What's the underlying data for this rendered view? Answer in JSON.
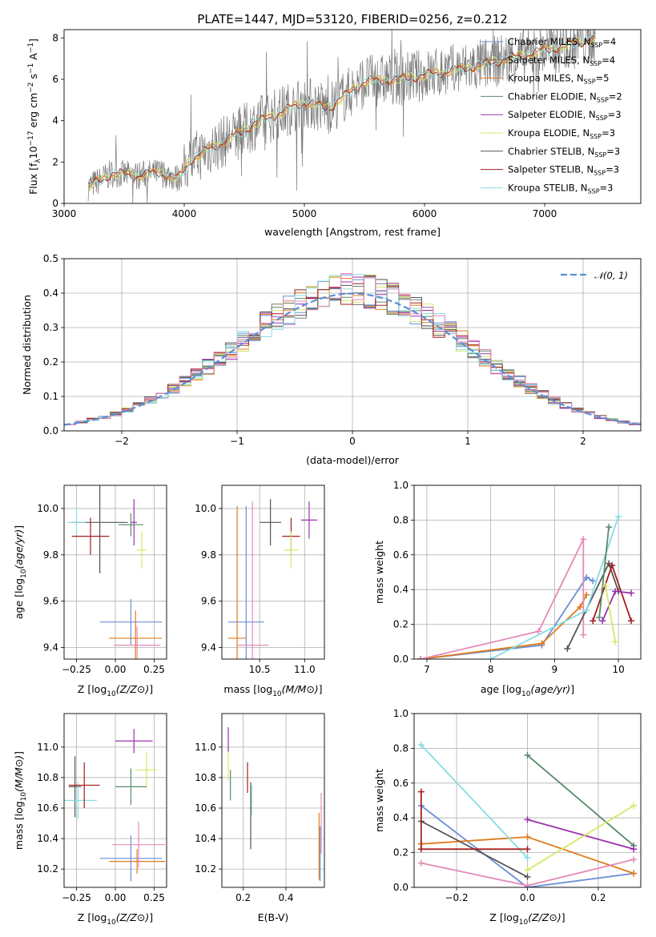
{
  "title": "PLATE=1447, MJD=53120, FIBERID=0256, z=0.212",
  "model_colors": {
    "Chabrier MILES": "#6b8fd6",
    "Salpeter MILES": "#7a7a7a",
    "Kroupa MILES": "#e07b1c",
    "Chabrier ELODIE": "#5a8a6a",
    "Salpeter ELODIE": "#9b30b0",
    "Kroupa ELODIE": "#d6e86a",
    "Chabrier STELIB": "#555555",
    "Salpeter STELIB": "#a51f1f",
    "Kroupa STELIB": "#86dde0",
    "extra_pink": "#e48ab8",
    "gaussian": "#5b8ed6"
  },
  "chart_data": [
    {
      "id": "spectrum",
      "type": "line",
      "xlabel": "wavelength [Angstrom, rest frame]",
      "ylabel_parts": [
        "Flux [f",
        "λ",
        "10",
        "−17",
        " erg cm",
        "−2",
        " s",
        "−1",
        " A",
        "−1",
        "]"
      ],
      "xlim": [
        3000,
        7800
      ],
      "ylim": [
        0,
        8.4
      ],
      "xticks": [
        "3000",
        "4000",
        "5000",
        "6000",
        "7000"
      ],
      "yticks": [
        "0",
        "2",
        "4",
        "6",
        "8"
      ],
      "legend_position": "right",
      "legend": [
        {
          "base": "Chabrier MILES, N",
          "sub": "SSP",
          "tail": "=4"
        },
        {
          "base": "Salpeter MILES, N",
          "sub": "SSP",
          "tail": "=4"
        },
        {
          "base": "Kroupa MILES, N",
          "sub": "SSP",
          "tail": "=5"
        },
        {
          "base": "Chabrier ELODIE, N",
          "sub": "SSP",
          "tail": "=2"
        },
        {
          "base": "Salpeter ELODIE, N",
          "sub": "SSP",
          "tail": "=3"
        },
        {
          "base": "Kroupa ELODIE, N",
          "sub": "SSP",
          "tail": "=3"
        },
        {
          "base": "Chabrier STELIB, N",
          "sub": "SSP",
          "tail": "=3"
        },
        {
          "base": "Salpeter STELIB, N",
          "sub": "SSP",
          "tail": "=3"
        },
        {
          "base": "Kroupa STELIB, N",
          "sub": "SSP",
          "tail": "=3"
        }
      ],
      "continuum": {
        "x": [
          3200,
          3400,
          3600,
          3800,
          3950,
          4050,
          4200,
          4400,
          4600,
          4800,
          5000,
          5200,
          5500,
          5800,
          6100,
          6400,
          6700,
          7000,
          7300,
          7500
        ],
        "y": [
          0.8,
          1.45,
          1.35,
          1.5,
          1.2,
          2.1,
          2.6,
          3.2,
          3.9,
          4.4,
          4.9,
          4.6,
          5.9,
          6.0,
          6.3,
          6.6,
          7.0,
          7.4,
          7.8,
          8.1
        ]
      }
    },
    {
      "id": "residuals",
      "type": "histogram",
      "xlabel": "(data-model)/error",
      "ylabel": "Normed distribution",
      "xlim": [
        -2.5,
        2.5
      ],
      "ylim": [
        0,
        0.5
      ],
      "xticks": [
        "−2",
        "−1",
        "0",
        "1",
        "2"
      ],
      "yticks": [
        "0.0",
        "0.1",
        "0.2",
        "0.3",
        "0.4",
        "0.5"
      ],
      "legend": "𝒩(0, 1)",
      "legend_position": "top-right",
      "bin_width": 0.1
    },
    {
      "id": "age_vs_Z",
      "type": "scatter",
      "xlabel": "Z [log10(Z/Z⊙)]",
      "ylabel": "age [log10(age/yr)]",
      "xlim": [
        -0.33,
        0.33
      ],
      "ylim": [
        9.35,
        10.1
      ],
      "xticks": [
        "−0.25",
        "0.00",
        "0.25"
      ],
      "yticks": [
        "9.4",
        "9.6",
        "9.8",
        "10.0"
      ],
      "points": [
        {
          "model": "Chabrier MILES",
          "x": 0.1,
          "y": 9.51,
          "xerr": 0.2,
          "yerr": 0.1
        },
        {
          "model": "Kroupa MILES",
          "x": 0.13,
          "y": 9.44,
          "xerr": 0.17,
          "yerr": 0.12
        },
        {
          "model": "extra_pink",
          "x": 0.14,
          "y": 9.41,
          "xerr": 0.15,
          "yerr": 0.08
        },
        {
          "model": "Chabrier STELIB",
          "x": -0.1,
          "y": 9.94,
          "xerr": 0.18,
          "yerr": 0.22
        },
        {
          "model": "Kroupa STELIB",
          "x": -0.25,
          "y": 9.94,
          "xerr": 0.06,
          "yerr": 0.06
        },
        {
          "model": "Salpeter STELIB",
          "x": -0.16,
          "y": 9.88,
          "xerr": 0.12,
          "yerr": 0.08
        },
        {
          "model": "Salpeter ELODIE",
          "x": 0.12,
          "y": 9.94,
          "xerr": 0.02,
          "yerr": 0.1
        },
        {
          "model": "Kroupa ELODIE",
          "x": 0.17,
          "y": 9.82,
          "xerr": 0.03,
          "yerr": 0.08
        },
        {
          "model": "Chabrier ELODIE",
          "x": 0.1,
          "y": 9.93,
          "xerr": 0.08,
          "yerr": 0.05
        }
      ]
    },
    {
      "id": "age_vs_mass",
      "type": "scatter",
      "xlabel": "mass [log10(M/M⊙)]",
      "xlim": [
        10.08,
        11.22
      ],
      "ylim": [
        9.35,
        10.1
      ],
      "xticks": [
        "10.5",
        "11.0"
      ],
      "yticks": [
        "9.4",
        "9.6",
        "9.8",
        "10.0"
      ],
      "points": [
        {
          "model": "Chabrier MILES",
          "x": 10.35,
          "y": 9.51,
          "xerr": 0.2,
          "yerr": 0.5
        },
        {
          "model": "Kroupa MILES",
          "x": 10.25,
          "y": 9.44,
          "xerr": 0.1,
          "yerr": 0.57
        },
        {
          "model": "extra_pink",
          "x": 10.42,
          "y": 9.41,
          "xerr": 0.18,
          "yerr": 0.62
        },
        {
          "model": "Chabrier STELIB",
          "x": 10.62,
          "y": 9.94,
          "xerr": 0.12,
          "yerr": 0.1
        },
        {
          "model": "Salpeter STELIB",
          "x": 10.85,
          "y": 9.88,
          "xerr": 0.1,
          "yerr": 0.08
        },
        {
          "model": "Salpeter ELODIE",
          "x": 11.05,
          "y": 9.95,
          "xerr": 0.09,
          "yerr": 0.08
        },
        {
          "model": "Kroupa ELODIE",
          "x": 10.85,
          "y": 9.82,
          "xerr": 0.08,
          "yerr": 0.08
        }
      ]
    },
    {
      "id": "weight_vs_age",
      "type": "line",
      "xlabel": "age [log10(age/yr)]",
      "ylabel": "mass weight",
      "xlim": [
        6.8,
        10.35
      ],
      "ylim": [
        0,
        1.0
      ],
      "xticks": [
        "7",
        "8",
        "9",
        "10"
      ],
      "yticks": [
        "0.0",
        "0.2",
        "0.4",
        "0.6",
        "0.8",
        "1.0"
      ],
      "series": [
        {
          "model": "Chabrier MILES",
          "x": [
            6.9,
            8.8,
            9.5,
            9.6
          ],
          "y": [
            0.0,
            0.08,
            0.47,
            0.45
          ]
        },
        {
          "model": "Kroupa MILES",
          "x": [
            6.9,
            8.8,
            9.4,
            9.5
          ],
          "y": [
            0.0,
            0.09,
            0.3,
            0.37
          ]
        },
        {
          "model": "extra_pink",
          "x": [
            6.9,
            8.75,
            9.45,
            9.45
          ],
          "y": [
            0.0,
            0.16,
            0.69,
            0.14
          ]
        },
        {
          "model": "Chabrier STELIB",
          "x": [
            9.2,
            9.85,
            10.0
          ],
          "y": [
            0.06,
            0.55,
            0.39
          ]
        },
        {
          "model": "Kroupa STELIB",
          "x": [
            8.0,
            9.5,
            10.0
          ],
          "y": [
            0.0,
            0.28,
            0.82
          ]
        },
        {
          "model": "Salpeter STELIB",
          "x": [
            9.6,
            9.9,
            10.2
          ],
          "y": [
            0.22,
            0.54,
            0.22
          ]
        },
        {
          "model": "Chabrier ELODIE",
          "x": [
            9.7,
            9.85
          ],
          "y": [
            0.24,
            0.76
          ]
        },
        {
          "model": "Salpeter ELODIE",
          "x": [
            9.75,
            9.95,
            10.2
          ],
          "y": [
            0.22,
            0.39,
            0.38
          ]
        },
        {
          "model": "Kroupa ELODIE",
          "x": [
            9.8,
            9.95
          ],
          "y": [
            0.42,
            0.1
          ]
        }
      ]
    },
    {
      "id": "mass_vs_Z",
      "type": "scatter",
      "xlabel": "Z [log10(Z/Z⊙)]",
      "ylabel": "mass [log10(M/M⊙)]",
      "xlim": [
        -0.33,
        0.33
      ],
      "ylim": [
        10.08,
        11.22
      ],
      "xticks": [
        "−0.25",
        "0.00",
        "0.25"
      ],
      "yticks": [
        "10.2",
        "10.4",
        "10.6",
        "10.8",
        "11.0"
      ],
      "points": [
        {
          "model": "Chabrier MILES",
          "x": 0.1,
          "y": 10.27,
          "xerr": 0.2,
          "yerr": 0.15
        },
        {
          "model": "Kroupa MILES",
          "x": 0.14,
          "y": 10.25,
          "xerr": 0.18,
          "yerr": 0.08
        },
        {
          "model": "extra_pink",
          "x": 0.15,
          "y": 10.36,
          "xerr": 0.17,
          "yerr": 0.15
        },
        {
          "model": "Chabrier STELIB",
          "x": -0.26,
          "y": 10.74,
          "xerr": 0.04,
          "yerr": 0.2
        },
        {
          "model": "Kroupa STELIB",
          "x": -0.24,
          "y": 10.65,
          "xerr": 0.12,
          "yerr": 0.12
        },
        {
          "model": "Salpeter STELIB",
          "x": -0.2,
          "y": 10.75,
          "xerr": 0.1,
          "yerr": 0.15
        },
        {
          "model": "Salpeter ELODIE",
          "x": 0.12,
          "y": 11.04,
          "xerr": 0.12,
          "yerr": 0.08
        },
        {
          "model": "Kroupa ELODIE",
          "x": 0.2,
          "y": 10.85,
          "xerr": 0.07,
          "yerr": 0.12
        },
        {
          "model": "Chabrier ELODIE",
          "x": 0.1,
          "y": 10.74,
          "xerr": 0.1,
          "yerr": 0.12
        }
      ]
    },
    {
      "id": "mass_vs_ebv",
      "type": "scatter",
      "xlabel": "E(B-V)",
      "xlim": [
        0.1,
        0.58
      ],
      "ylim": [
        10.08,
        11.22
      ],
      "xticks": [
        "0.2",
        "0.4"
      ],
      "yticks": [
        "10.2",
        "10.4",
        "10.6",
        "10.8",
        "11.0"
      ],
      "points": [
        {
          "model": "Kroupa ELODIE",
          "x": 0.13,
          "y": 10.9,
          "yerr": 0.12
        },
        {
          "model": "Salpeter ELODIE",
          "x": 0.13,
          "y": 11.05,
          "yerr": 0.08
        },
        {
          "model": "Chabrier ELODIE",
          "x": 0.14,
          "y": 10.75,
          "yerr": 0.1
        },
        {
          "model": "Salpeter STELIB",
          "x": 0.22,
          "y": 10.8,
          "yerr": 0.1
        },
        {
          "model": "Chabrier STELIB",
          "x": 0.235,
          "y": 10.55,
          "yerr": 0.22
        },
        {
          "model": "Kroupa STELIB",
          "x": 0.24,
          "y": 10.65,
          "yerr": 0.1
        },
        {
          "model": "Chabrier MILES",
          "x": 0.56,
          "y": 10.3,
          "yerr": 0.18
        },
        {
          "model": "Kroupa MILES",
          "x": 0.555,
          "y": 10.35,
          "yerr": 0.22
        },
        {
          "model": "extra_pink",
          "x": 0.565,
          "y": 10.5,
          "yerr": 0.2
        }
      ]
    },
    {
      "id": "weight_vs_Z",
      "type": "line",
      "xlabel": "Z [log10(Z/Z⊙)]",
      "ylabel": "mass weight",
      "xlim": [
        -0.32,
        0.32
      ],
      "ylim": [
        0,
        1.0
      ],
      "xticks": [
        "−0.2",
        "0.0",
        "0.2"
      ],
      "yticks": [
        "0.0",
        "0.2",
        "0.4",
        "0.6",
        "0.8",
        "1.0"
      ],
      "series": [
        {
          "model": "Chabrier MILES",
          "x": [
            -0.3,
            0.0,
            0.3
          ],
          "y": [
            0.47,
            0.0,
            0.08
          ]
        },
        {
          "model": "Kroupa MILES",
          "x": [
            -0.3,
            0.0,
            0.3
          ],
          "y": [
            0.25,
            0.29,
            0.08
          ]
        },
        {
          "model": "extra_pink",
          "x": [
            -0.3,
            0.0,
            0.3
          ],
          "y": [
            0.14,
            0.01,
            0.16
          ]
        },
        {
          "model": "Chabrier STELIB",
          "x": [
            -0.3,
            0.0
          ],
          "y": [
            0.38,
            0.06
          ]
        },
        {
          "model": "Kroupa STELIB",
          "x": [
            -0.3,
            0.0
          ],
          "y": [
            0.82,
            0.17
          ]
        },
        {
          "model": "Salpeter STELIB",
          "x": [
            -0.3,
            -0.3,
            0.0
          ],
          "y": [
            0.55,
            0.22,
            0.22
          ]
        },
        {
          "model": "Chabrier ELODIE",
          "x": [
            0.0,
            0.3
          ],
          "y": [
            0.76,
            0.24
          ]
        },
        {
          "model": "Salpeter ELODIE",
          "x": [
            0.0,
            0.3
          ],
          "y": [
            0.39,
            0.22
          ]
        },
        {
          "model": "Kroupa ELODIE",
          "x": [
            0.0,
            0.3
          ],
          "y": [
            0.1,
            0.47
          ]
        }
      ]
    }
  ]
}
